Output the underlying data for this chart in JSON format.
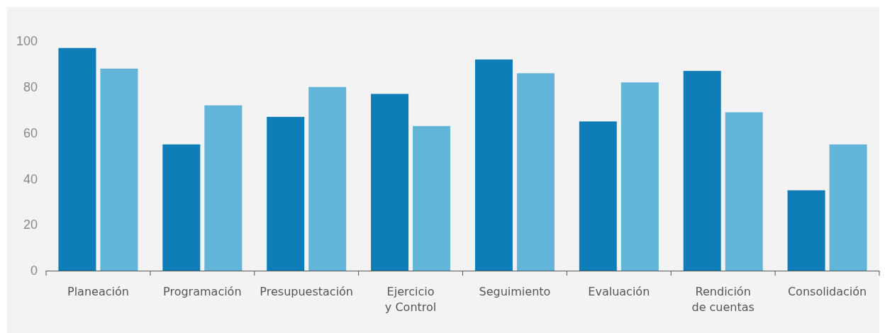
{
  "chart_data": {
    "type": "bar",
    "categories": [
      "Planeación",
      "Programación",
      "Presupuestación",
      "Ejercicio\ny Control",
      "Seguimiento",
      "Evaluación",
      "Rendición\nde cuentas",
      "Consolidación"
    ],
    "series": [
      {
        "color": "#0f7db8",
        "values": [
          97,
          55,
          67,
          77,
          92,
          65,
          87,
          35
        ]
      },
      {
        "color": "#62b5d9",
        "values": [
          88,
          72,
          80,
          63,
          86,
          82,
          69,
          55
        ]
      }
    ],
    "ylim": [
      0,
      100
    ],
    "yticks": [
      0,
      20,
      40,
      60,
      80,
      100
    ],
    "grid": false
  }
}
